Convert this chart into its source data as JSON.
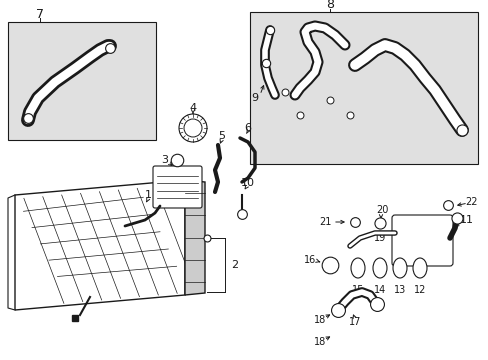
{
  "background_color": "#ffffff",
  "line_color": "#1a1a1a",
  "gray_fill": "#e0e0e0",
  "fig_width": 4.89,
  "fig_height": 3.6,
  "dpi": 100
}
